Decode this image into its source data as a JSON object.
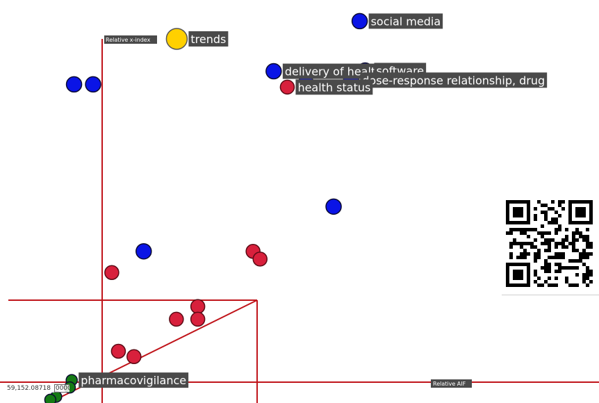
{
  "chart_data": {
    "type": "scatter",
    "axes": {
      "vertical_axis_label": "Relative x-index",
      "horizontal_axis_label": "Relative AIF"
    },
    "colors": {
      "blue": "#0a14e6",
      "red": "#d8203c",
      "green": "#157a15",
      "yellow": "#ffd000",
      "axis": "#c0141a",
      "label_bg": "#4a4a4a"
    },
    "points": [
      {
        "x": 66.0,
        "y": 93.8,
        "color": "blue",
        "label": "social media"
      },
      {
        "x": 19.0,
        "y": 89.2,
        "color": "yellow",
        "label": "trends"
      },
      {
        "x": 43.9,
        "y": 80.8,
        "color": "blue",
        "label": "delivery of health care"
      },
      {
        "x": 67.4,
        "y": 81.0,
        "color": "blue",
        "label": "software"
      },
      {
        "x": 63.8,
        "y": 78.5,
        "color": "blue",
        "label": "dose-response relationship, drug"
      },
      {
        "x": 52.2,
        "y": 77.7,
        "color": "blue",
        "label": ""
      },
      {
        "x": 47.4,
        "y": 76.7,
        "color": "red",
        "label": "health status"
      },
      {
        "x": -7.4,
        "y": 77.4,
        "color": "blue",
        "label": ""
      },
      {
        "x": -2.5,
        "y": 77.4,
        "color": "blue",
        "label": ""
      },
      {
        "x": 59.3,
        "y": 45.7,
        "color": "blue",
        "label": ""
      },
      {
        "x": 10.5,
        "y": 34.1,
        "color": "blue",
        "label": ""
      },
      {
        "x": 38.6,
        "y": 34.1,
        "color": "red",
        "label": ""
      },
      {
        "x": 40.4,
        "y": 32.1,
        "color": "red",
        "label": ""
      },
      {
        "x": 2.3,
        "y": 28.6,
        "color": "red",
        "label": ""
      },
      {
        "x": 24.4,
        "y": 19.8,
        "color": "red",
        "label": ""
      },
      {
        "x": 24.4,
        "y": 16.5,
        "color": "red",
        "label": ""
      },
      {
        "x": 18.9,
        "y": 16.5,
        "color": "red",
        "label": ""
      },
      {
        "x": 4.0,
        "y": 8.2,
        "color": "red",
        "label": ""
      },
      {
        "x": 8.0,
        "y": 6.8,
        "color": "red",
        "label": ""
      },
      {
        "x": -8.0,
        "y": 0.7,
        "color": "green",
        "label": "pharmacovigilance"
      },
      {
        "x": -8.5,
        "y": -1.2,
        "color": "green",
        "label": ""
      },
      {
        "x": -12.0,
        "y": -3.6,
        "color": "green",
        "label": ""
      },
      {
        "x": -13.5,
        "y": -4.4,
        "color": "green",
        "label": ""
      }
    ]
  },
  "coordinate_readout": "59,152.08718",
  "coordinate_box": "0000"
}
